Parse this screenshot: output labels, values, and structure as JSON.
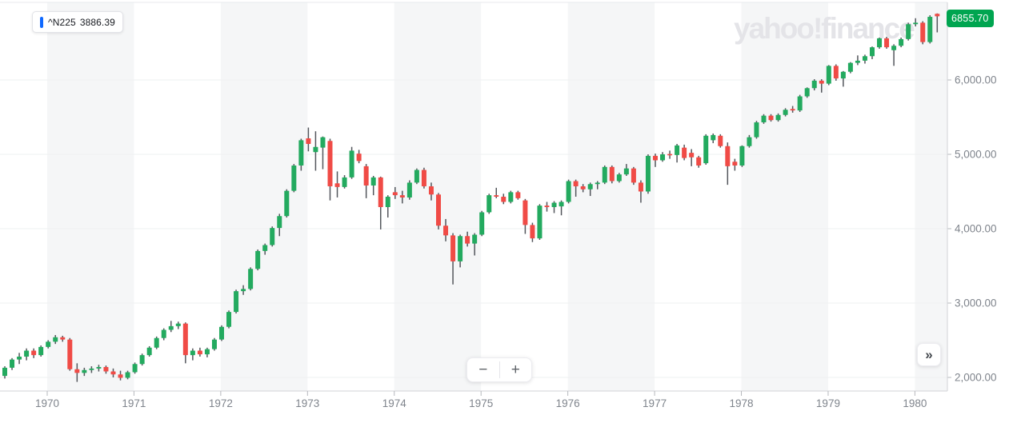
{
  "watermark": {
    "text": "yahoo!finance"
  },
  "legend": {
    "symbol": "^N225",
    "value": "3886.39"
  },
  "price_badge": {
    "value": "6855.70"
  },
  "controls": {
    "zoom_out": "−",
    "zoom_in": "+",
    "next": "»"
  },
  "colors": {
    "up": "#23aa5f",
    "down": "#f04b46",
    "wick": "#53565c",
    "band": "#f5f6f7",
    "grid": "#eef0f2",
    "axis_line": "#d2d3d7",
    "tick": "#b6b8bd",
    "tick_label": "#7f848c",
    "accent_blue": "#0f69ff",
    "badge_green": "#00a550",
    "watermark": "#e4e4e8",
    "top_border": "#e8e9ec"
  },
  "chart_data": {
    "type": "candlestick",
    "symbol": "^N225",
    "interval": "monthly",
    "start_month": "1969-07",
    "end_month": "1980-04",
    "last_price": 6855.7,
    "legend_value": 3886.39,
    "grid": "on",
    "x_ticks": [
      1970,
      1971,
      1972,
      1973,
      1974,
      1975,
      1976,
      1977,
      1978,
      1979,
      1980
    ],
    "y_ticks": [
      {
        "value": 6000,
        "label": "6,000.00"
      },
      {
        "value": 5000,
        "label": "5,000.00"
      },
      {
        "value": 4000,
        "label": "4,000.00"
      },
      {
        "value": 3000,
        "label": "3,000.00"
      },
      {
        "value": 2000,
        "label": "2,000.00"
      }
    ],
    "ylim": [
      1830,
      7040
    ],
    "shaded_year_bands": [
      [
        1970,
        1971
      ],
      [
        1972,
        1973
      ],
      [
        1974,
        1975
      ],
      [
        1976,
        1977
      ],
      [
        1978,
        1979
      ],
      [
        1980,
        1980.4
      ]
    ],
    "candles_format": [
      "open",
      "high",
      "low",
      "close"
    ],
    "candles": [
      [
        2020,
        2150,
        1985,
        2130
      ],
      [
        2130,
        2260,
        2100,
        2240
      ],
      [
        2240,
        2330,
        2180,
        2280
      ],
      [
        2280,
        2390,
        2230,
        2360
      ],
      [
        2360,
        2390,
        2260,
        2300
      ],
      [
        2300,
        2430,
        2280,
        2410
      ],
      [
        2410,
        2500,
        2390,
        2480
      ],
      [
        2480,
        2570,
        2450,
        2540
      ],
      [
        2540,
        2560,
        2480,
        2510
      ],
      [
        2510,
        2530,
        2090,
        2110
      ],
      [
        2110,
        2190,
        1940,
        2060
      ],
      [
        2060,
        2130,
        2020,
        2100
      ],
      [
        2100,
        2150,
        2060,
        2120
      ],
      [
        2120,
        2170,
        2080,
        2140
      ],
      [
        2140,
        2160,
        2050,
        2080
      ],
      [
        2080,
        2120,
        2000,
        2040
      ],
      [
        2040,
        2090,
        1960,
        1995
      ],
      [
        1995,
        2090,
        1975,
        2070
      ],
      [
        2070,
        2200,
        2050,
        2180
      ],
      [
        2180,
        2320,
        2160,
        2300
      ],
      [
        2300,
        2420,
        2280,
        2400
      ],
      [
        2400,
        2550,
        2380,
        2530
      ],
      [
        2530,
        2660,
        2500,
        2640
      ],
      [
        2640,
        2760,
        2610,
        2690
      ],
      [
        2690,
        2750,
        2650,
        2725
      ],
      [
        2725,
        2740,
        2190,
        2300
      ],
      [
        2300,
        2390,
        2230,
        2360
      ],
      [
        2360,
        2400,
        2280,
        2310
      ],
      [
        2310,
        2400,
        2270,
        2380
      ],
      [
        2380,
        2530,
        2360,
        2510
      ],
      [
        2510,
        2700,
        2490,
        2680
      ],
      [
        2680,
        2900,
        2660,
        2880
      ],
      [
        2880,
        3180,
        2860,
        3160
      ],
      [
        3160,
        3240,
        3110,
        3190
      ],
      [
        3190,
        3480,
        3170,
        3460
      ],
      [
        3460,
        3720,
        3440,
        3700
      ],
      [
        3700,
        3800,
        3650,
        3780
      ],
      [
        3780,
        4030,
        3760,
        4010
      ],
      [
        4010,
        4200,
        3900,
        4170
      ],
      [
        4170,
        4530,
        4150,
        4510
      ],
      [
        4510,
        4870,
        4490,
        4850
      ],
      [
        4850,
        5210,
        4780,
        5190
      ],
      [
        5215,
        5360,
        5040,
        5140
      ],
      [
        5030,
        5310,
        4780,
        5100
      ],
      [
        5090,
        5240,
        4800,
        5230
      ],
      [
        5180,
        5210,
        4380,
        4570
      ],
      [
        4610,
        4770,
        4420,
        4560
      ],
      [
        4560,
        4720,
        4540,
        4690
      ],
      [
        4690,
        5100,
        4670,
        5050
      ],
      [
        5010,
        5060,
        4880,
        4910
      ],
      [
        4840,
        4870,
        4410,
        4580
      ],
      [
        4580,
        4710,
        4450,
        4690
      ],
      [
        4690,
        4700,
        3990,
        4290
      ],
      [
        4290,
        4450,
        4150,
        4430
      ],
      [
        4490,
        4560,
        4400,
        4450
      ],
      [
        4450,
        4510,
        4340,
        4420
      ],
      [
        4420,
        4650,
        4390,
        4620
      ],
      [
        4620,
        4810,
        4600,
        4790
      ],
      [
        4790,
        4820,
        4540,
        4570
      ],
      [
        4570,
        4620,
        4380,
        4460
      ],
      [
        4460,
        4480,
        3990,
        4040
      ],
      [
        4040,
        4130,
        3830,
        3910
      ],
      [
        3910,
        3940,
        3250,
        3560
      ],
      [
        3560,
        3920,
        3480,
        3900
      ],
      [
        3900,
        3960,
        3760,
        3800
      ],
      [
        3800,
        3940,
        3640,
        3920
      ],
      [
        3920,
        4240,
        3900,
        4220
      ],
      [
        4220,
        4470,
        4200,
        4450
      ],
      [
        4450,
        4550,
        4410,
        4430
      ],
      [
        4430,
        4470,
        4330,
        4360
      ],
      [
        4360,
        4510,
        4340,
        4490
      ],
      [
        4490,
        4510,
        4390,
        4410
      ],
      [
        4380,
        4400,
        3930,
        4050
      ],
      [
        4050,
        4080,
        3820,
        3870
      ],
      [
        3870,
        4330,
        3850,
        4310
      ],
      [
        4310,
        4360,
        4230,
        4290
      ],
      [
        4290,
        4370,
        4210,
        4350
      ],
      [
        4300,
        4380,
        4180,
        4360
      ],
      [
        4360,
        4660,
        4340,
        4640
      ],
      [
        4640,
        4660,
        4430,
        4570
      ],
      [
        4570,
        4600,
        4490,
        4530
      ],
      [
        4530,
        4620,
        4440,
        4600
      ],
      [
        4600,
        4640,
        4530,
        4620
      ],
      [
        4620,
        4850,
        4600,
        4830
      ],
      [
        4830,
        4850,
        4610,
        4640
      ],
      [
        4640,
        4750,
        4620,
        4730
      ],
      [
        4730,
        4870,
        4710,
        4810
      ],
      [
        4810,
        4830,
        4590,
        4620
      ],
      [
        4620,
        4650,
        4350,
        4500
      ],
      [
        4500,
        5000,
        4470,
        4980
      ],
      [
        4980,
        5010,
        4830,
        4920
      ],
      [
        4920,
        5030,
        4900,
        5000
      ],
      [
        5000,
        5050,
        4940,
        4990
      ],
      [
        4990,
        5140,
        4890,
        5120
      ],
      [
        5090,
        5130,
        4920,
        4950
      ],
      [
        5020,
        5070,
        4840,
        4960
      ],
      [
        4960,
        4980,
        4820,
        4850
      ],
      [
        4880,
        5270,
        4860,
        5250
      ],
      [
        5190,
        5280,
        5150,
        5260
      ],
      [
        5250,
        5270,
        5090,
        5110
      ],
      [
        5110,
        5160,
        4590,
        4840
      ],
      [
        4900,
        4940,
        4780,
        4850
      ],
      [
        4850,
        5120,
        4830,
        5110
      ],
      [
        5110,
        5260,
        5090,
        5230
      ],
      [
        5230,
        5450,
        5210,
        5430
      ],
      [
        5430,
        5540,
        5410,
        5520
      ],
      [
        5520,
        5540,
        5440,
        5460
      ],
      [
        5460,
        5550,
        5440,
        5530
      ],
      [
        5530,
        5620,
        5510,
        5600
      ],
      [
        5610,
        5650,
        5560,
        5590
      ],
      [
        5590,
        5800,
        5570,
        5780
      ],
      [
        5780,
        5900,
        5760,
        5890
      ],
      [
        5890,
        6010,
        5860,
        5990
      ],
      [
        5990,
        6010,
        5830,
        5950
      ],
      [
        5950,
        6200,
        5930,
        6190
      ],
      [
        6190,
        6210,
        5990,
        6020
      ],
      [
        6020,
        6120,
        5910,
        6110
      ],
      [
        6110,
        6240,
        6090,
        6230
      ],
      [
        6230,
        6330,
        6200,
        6260
      ],
      [
        6260,
        6340,
        6220,
        6320
      ],
      [
        6320,
        6450,
        6280,
        6440
      ],
      [
        6440,
        6570,
        6420,
        6560
      ],
      [
        6560,
        6580,
        6420,
        6440
      ],
      [
        6400,
        6480,
        6190,
        6460
      ],
      [
        6460,
        6570,
        6440,
        6550
      ],
      [
        6550,
        6770,
        6530,
        6750
      ],
      [
        6750,
        6830,
        6720,
        6770
      ],
      [
        6770,
        6790,
        6480,
        6510
      ],
      [
        6510,
        6870,
        6490,
        6850
      ],
      [
        6890,
        6895,
        6640,
        6855.7
      ]
    ]
  }
}
